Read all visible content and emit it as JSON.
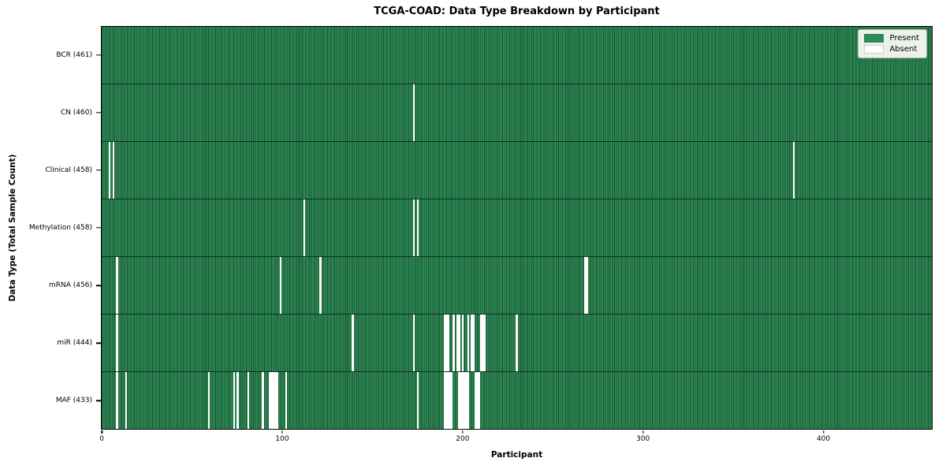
{
  "colors": {
    "present": "#2e8b57",
    "present_edge": "#1a522f",
    "absent": "#ffffff",
    "axis": "#000000"
  },
  "chart_data": {
    "type": "heatmap",
    "title": "TCGA-COAD: Data Type Breakdown by Participant",
    "xlabel": "Participant",
    "ylabel": "Data Type (Total Sample Count)",
    "n_participants": 461,
    "x_axis": {
      "ticks": [
        0,
        100,
        200,
        300,
        400
      ],
      "range": [
        0,
        461
      ]
    },
    "legend": [
      {
        "label": "Present",
        "color": "#2e8b57"
      },
      {
        "label": "Absent",
        "color": "#ffffff"
      }
    ],
    "legend_position": "upper right",
    "rows": [
      {
        "label": "BCR (461)",
        "data_type": "BCR",
        "total_samples": 461,
        "absent_participants": []
      },
      {
        "label": "CN (460)",
        "data_type": "CN",
        "total_samples": 460,
        "absent_participants": [
          173
        ]
      },
      {
        "label": "Clinical (458)",
        "data_type": "Clinical",
        "total_samples": 458,
        "absent_participants": [
          4,
          6,
          384
        ]
      },
      {
        "label": "Methylation (458)",
        "data_type": "Methylation",
        "total_samples": 458,
        "absent_participants": [
          112,
          173,
          175
        ]
      },
      {
        "label": "mRNA (456)",
        "data_type": "mRNA",
        "total_samples": 456,
        "absent_participants": [
          8,
          99,
          121,
          268,
          269
        ]
      },
      {
        "label": "miR (444)",
        "data_type": "miR",
        "total_samples": 444,
        "absent_participants": [
          8,
          139,
          173,
          190,
          191,
          192,
          195,
          197,
          198,
          200,
          203,
          205,
          206,
          210,
          211,
          212,
          230
        ]
      },
      {
        "label": "MAF (433)",
        "data_type": "MAF",
        "total_samples": 433,
        "absent_participants": [
          8,
          13,
          59,
          73,
          75,
          81,
          89,
          93,
          94,
          95,
          96,
          97,
          102,
          175,
          190,
          191,
          192,
          193,
          194,
          198,
          199,
          200,
          201,
          202,
          203,
          207,
          208,
          209
        ]
      }
    ]
  }
}
